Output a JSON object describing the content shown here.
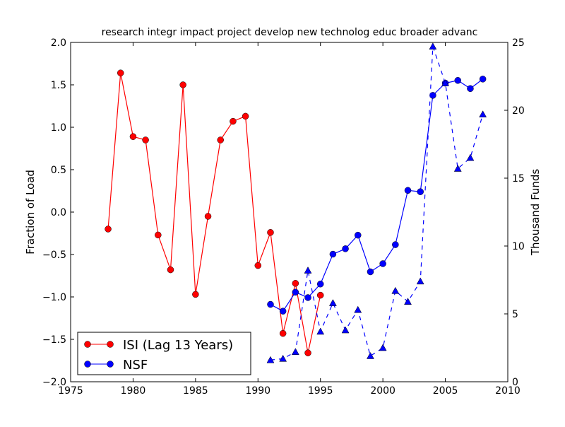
{
  "chart_data": {
    "type": "line",
    "title": "research integr impact project develop new technolog educ broader advanc",
    "xlabel": "",
    "ylabel": "Fraction of Load",
    "ylabel_right": "Thousand Funds",
    "xlim": [
      1975,
      2010
    ],
    "ylim": [
      -2.0,
      2.0
    ],
    "ylim_right": [
      0,
      25
    ],
    "x_ticks": [
      "1975",
      "1980",
      "1985",
      "1990",
      "1995",
      "2000",
      "2005",
      "2010"
    ],
    "y_ticks": [
      "−2.0",
      "−1.5",
      "−1.0",
      "−0.5",
      "0.0",
      "0.5",
      "1.0",
      "1.5",
      "2.0"
    ],
    "y_ticks_right": [
      "0",
      "5",
      "10",
      "15",
      "20",
      "25"
    ],
    "legend_position": "lower-left",
    "series": [
      {
        "name": "ISI (Lag 13 Years)",
        "axis": "left",
        "color": "#ff0000",
        "marker": "circle",
        "style": "solid",
        "x": [
          1978,
          1979,
          1980,
          1981,
          1982,
          1983,
          1984,
          1985,
          1986,
          1987,
          1988,
          1989,
          1990,
          1991,
          1992,
          1993,
          1994,
          1995
        ],
        "y": [
          -0.2,
          1.64,
          0.89,
          0.85,
          -0.27,
          -0.68,
          1.5,
          -0.97,
          -0.05,
          0.85,
          1.07,
          1.13,
          -0.63,
          -0.24,
          -1.43,
          -0.84,
          -1.66,
          -0.98
        ]
      },
      {
        "name": "NSF",
        "axis": "right",
        "color": "#0000ff",
        "marker": "circle",
        "style": "solid",
        "x": [
          1991,
          1992,
          1993,
          1994,
          1995,
          1996,
          1997,
          1998,
          1999,
          2000,
          2001,
          2002,
          2003,
          2004,
          2005,
          2006,
          2007,
          2008
        ],
        "y": [
          5.7,
          5.2,
          6.6,
          6.2,
          7.2,
          9.4,
          9.8,
          10.8,
          8.1,
          8.7,
          10.1,
          14.1,
          14.0,
          21.1,
          22.0,
          22.2,
          21.6,
          22.3
        ]
      },
      {
        "name": "",
        "axis": "right",
        "color": "#0000ff",
        "marker": "triangle",
        "style": "dashed",
        "x": [
          1991,
          1992,
          1993,
          1994,
          1995,
          1996,
          1997,
          1998,
          1999,
          2000,
          2001,
          2002,
          2003,
          2004,
          2005,
          2006,
          2007,
          2008
        ],
        "y": [
          1.6,
          1.7,
          2.2,
          8.2,
          3.7,
          5.8,
          3.8,
          5.3,
          1.9,
          2.5,
          6.7,
          5.9,
          7.4,
          24.7,
          22.0,
          15.7,
          16.5,
          19.7
        ]
      }
    ]
  }
}
